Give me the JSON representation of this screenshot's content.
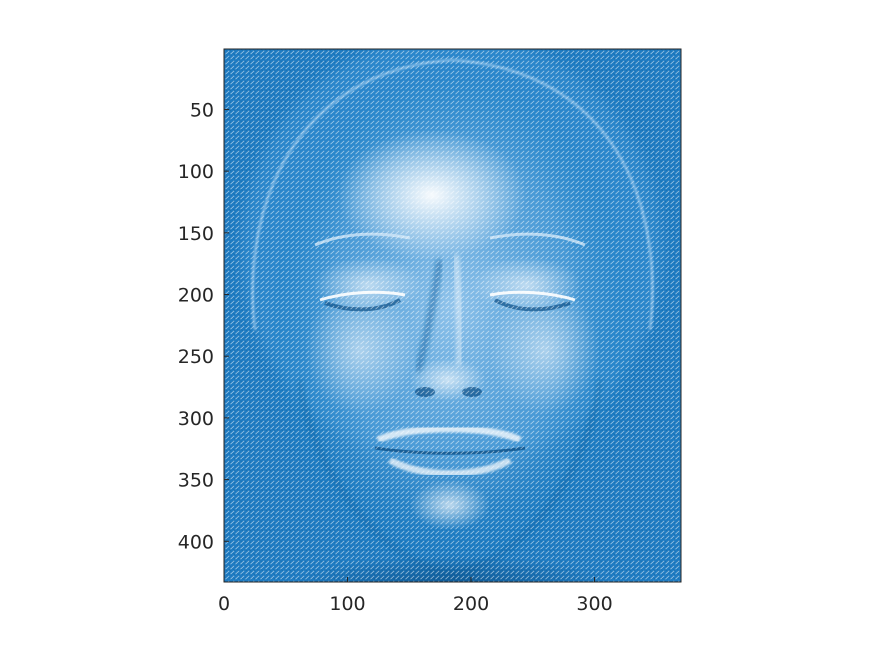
{
  "chart_data": {
    "type": "heatmap",
    "description_of_content": "",
    "title": "",
    "xlabel": "",
    "ylabel": "",
    "xlim": [
      0,
      370
    ],
    "ylim": [
      1,
      433
    ],
    "y_direction": "reverse",
    "x_ticks": [
      0,
      100,
      200,
      300
    ],
    "y_ticks": [
      50,
      100,
      150,
      200,
      250,
      300,
      350,
      400
    ],
    "grid": false,
    "legend": "none",
    "colors": {
      "field": "#0072bd",
      "highlight": "#ffffff",
      "axis": "#262626"
    },
    "image": {
      "face_center_x": 183,
      "face_center_y": 270,
      "forehead_glow": {
        "x": 170,
        "y": 135
      },
      "left_eye": {
        "x": 65,
        "y": 200
      },
      "right_eye": {
        "x": 235,
        "y": 200
      },
      "nose_tip": {
        "x": 180,
        "y": 280
      },
      "mouth": {
        "x": 180,
        "y": 330
      },
      "chin": {
        "x": 182,
        "y": 372
      }
    }
  }
}
